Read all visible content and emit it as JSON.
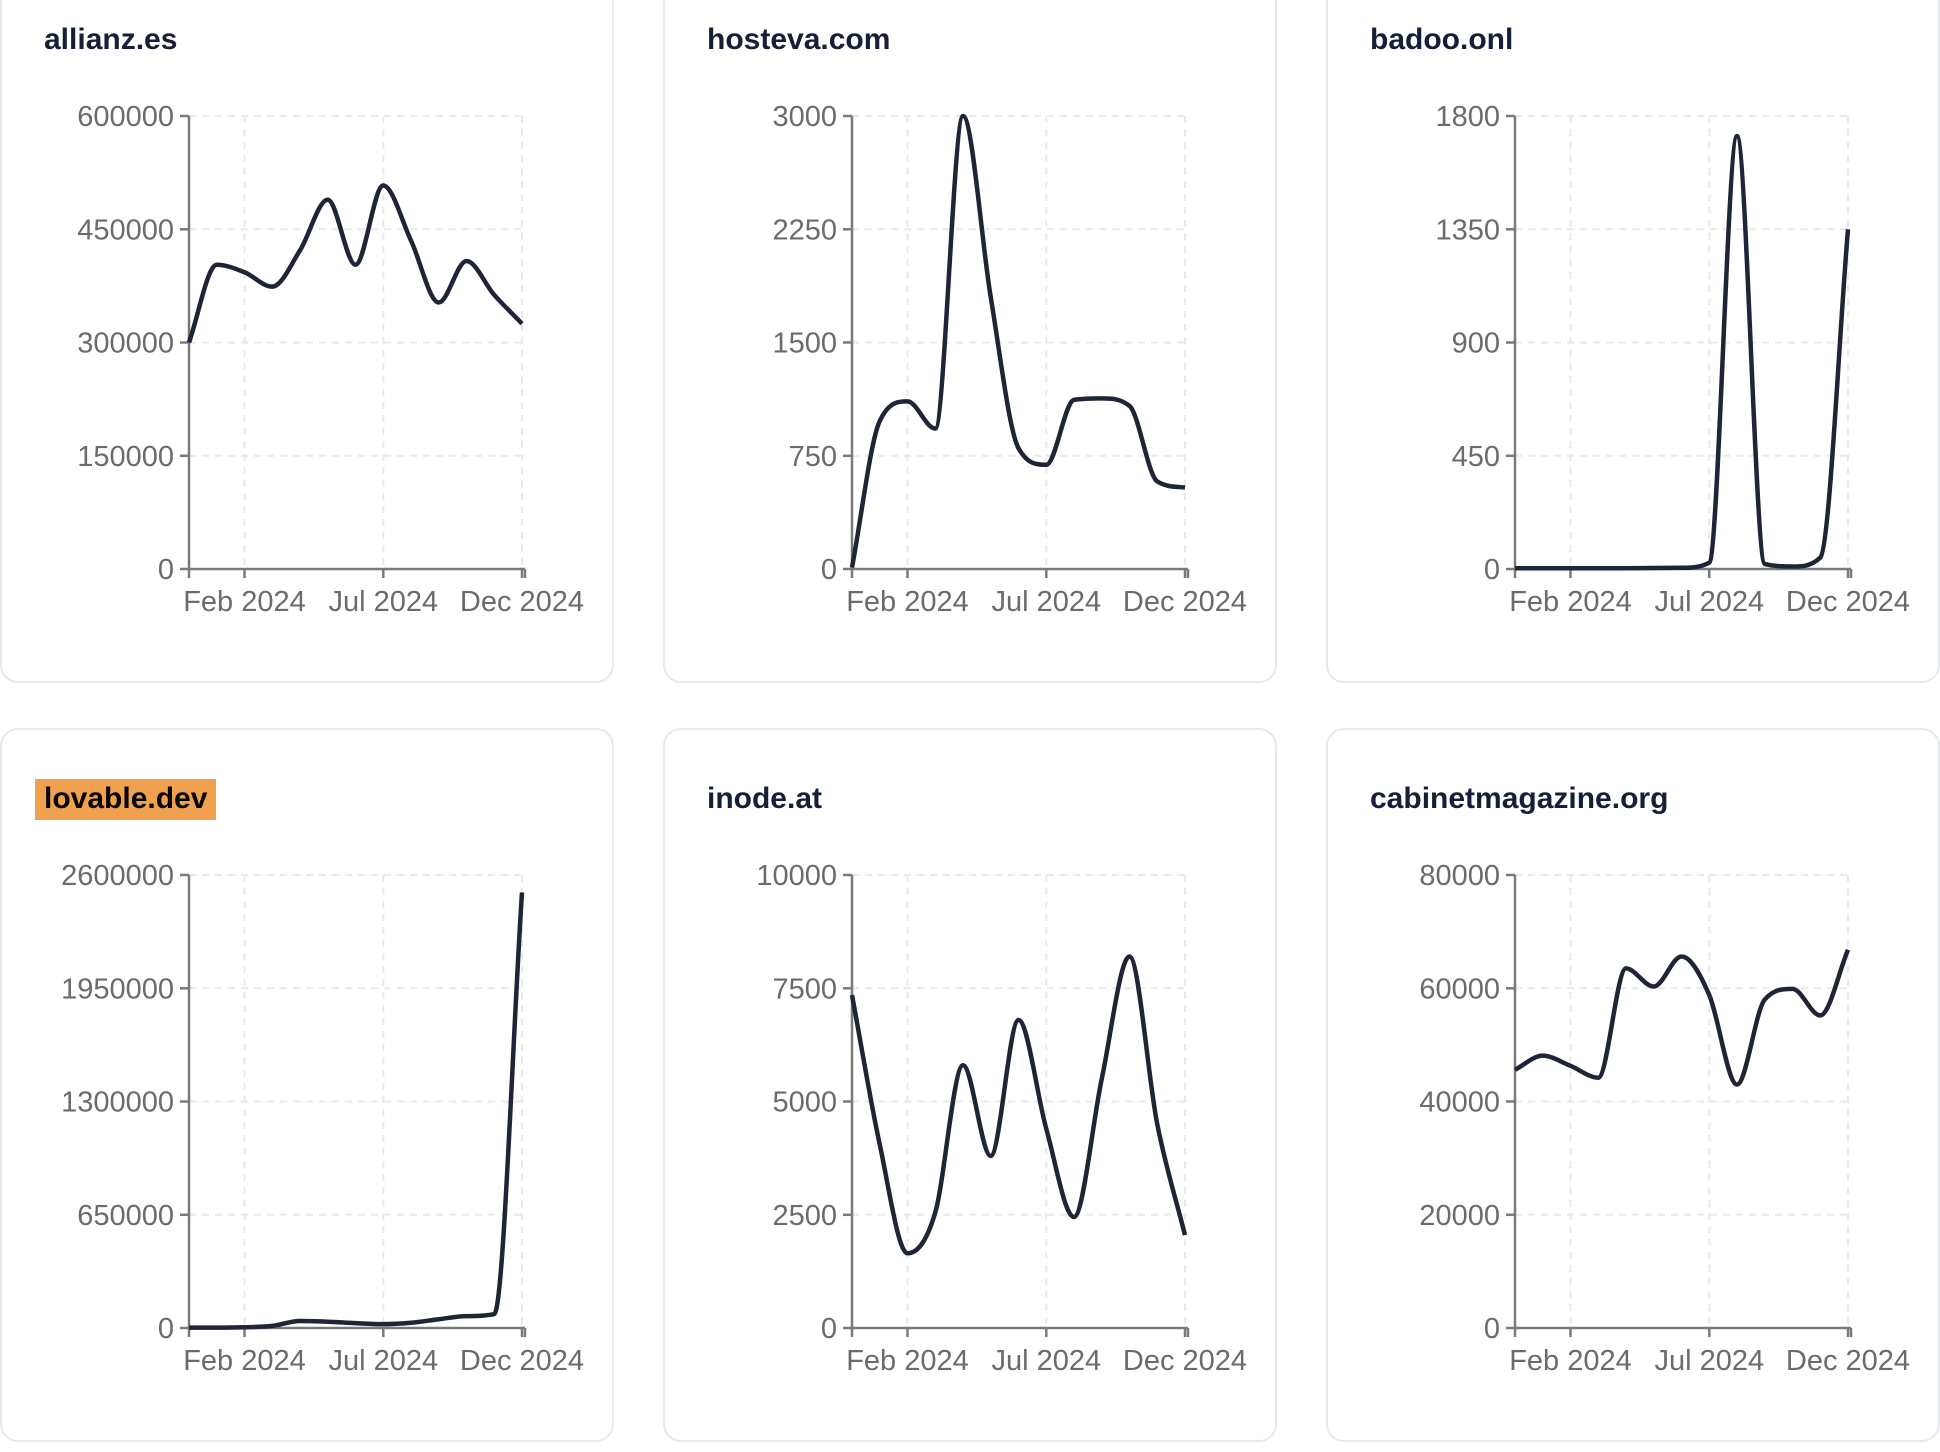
{
  "colors": {
    "line": "#1e2537",
    "title_text": "#161f38",
    "tick_label": "#6b6b6b",
    "axis": "#7a7a7a",
    "grid": "#e9e9e9",
    "card_border": "#e4e9f1",
    "card_bg": "#ffffff",
    "page_bg": "#ffffff",
    "highlight_bg": "#f0a14f",
    "highlight_text": "#050505"
  },
  "chart_data": [
    {
      "type": "line",
      "title": "allianz.es",
      "highlighted": false,
      "x": [
        "2023-12",
        "2024-01",
        "2024-02",
        "2024-03",
        "2024-04",
        "2024-05",
        "2024-06",
        "2024-07",
        "2024-08",
        "2024-09",
        "2024-10",
        "2024-11",
        "2024-12"
      ],
      "values": [
        300000,
        403000,
        393000,
        374000,
        422000,
        489000,
        403000,
        508000,
        435000,
        353000,
        408000,
        363000,
        325000
      ],
      "y_ticks": [
        0,
        150000,
        300000,
        450000,
        600000
      ],
      "ylim": [
        0,
        600000
      ],
      "x_tick_labels": [
        "Feb 2024",
        "Jul 2024",
        "Dec 2024"
      ],
      "x_tick_month_indices": [
        2,
        7,
        12
      ],
      "grid": true,
      "legend": false
    },
    {
      "type": "line",
      "title": "hosteva.com",
      "highlighted": false,
      "x": [
        "2023-12",
        "2024-01",
        "2024-02",
        "2024-03",
        "2024-04",
        "2024-05",
        "2024-06",
        "2024-07",
        "2024-08",
        "2024-09",
        "2024-10",
        "2024-11",
        "2024-12"
      ],
      "values": [
        10,
        980,
        1110,
        930,
        3000,
        1800,
        800,
        690,
        1120,
        1130,
        1080,
        580,
        540
      ],
      "y_ticks": [
        0,
        750,
        1500,
        2250,
        3000
      ],
      "ylim": [
        0,
        3000
      ],
      "x_tick_labels": [
        "Feb 2024",
        "Jul 2024",
        "Dec 2024"
      ],
      "x_tick_month_indices": [
        2,
        7,
        12
      ],
      "grid": true,
      "legend": false
    },
    {
      "type": "line",
      "title": "badoo.onl",
      "highlighted": false,
      "x": [
        "2023-12",
        "2024-01",
        "2024-02",
        "2024-03",
        "2024-04",
        "2024-05",
        "2024-06",
        "2024-07",
        "2024-08",
        "2024-09",
        "2024-10",
        "2024-11",
        "2024-12"
      ],
      "values": [
        3,
        3,
        3,
        3,
        3,
        4,
        5,
        25,
        1720,
        20,
        10,
        45,
        1350
      ],
      "y_ticks": [
        0,
        450,
        900,
        1350,
        1800
      ],
      "ylim": [
        0,
        1800
      ],
      "x_tick_labels": [
        "Feb 2024",
        "Jul 2024",
        "Dec 2024"
      ],
      "x_tick_month_indices": [
        2,
        7,
        12
      ],
      "grid": true,
      "legend": false
    },
    {
      "type": "line",
      "title": "lovable.dev",
      "highlighted": true,
      "x": [
        "2023-12",
        "2024-01",
        "2024-02",
        "2024-03",
        "2024-04",
        "2024-05",
        "2024-06",
        "2024-07",
        "2024-08",
        "2024-09",
        "2024-10",
        "2024-11",
        "2024-12"
      ],
      "values": [
        2000,
        2000,
        4000,
        12000,
        40000,
        36000,
        28000,
        22000,
        30000,
        50000,
        68000,
        80000,
        2500000
      ],
      "y_ticks": [
        0,
        650000,
        1300000,
        1950000,
        2600000
      ],
      "ylim": [
        0,
        2600000
      ],
      "x_tick_labels": [
        "Feb 2024",
        "Jul 2024",
        "Dec 2024"
      ],
      "x_tick_month_indices": [
        2,
        7,
        12
      ],
      "grid": true,
      "legend": false
    },
    {
      "type": "line",
      "title": "inode.at",
      "highlighted": false,
      "x": [
        "2023-12",
        "2024-01",
        "2024-02",
        "2024-03",
        "2024-04",
        "2024-05",
        "2024-06",
        "2024-07",
        "2024-08",
        "2024-09",
        "2024-10",
        "2024-11",
        "2024-12"
      ],
      "values": [
        7350,
        4050,
        1650,
        2550,
        5800,
        3800,
        6800,
        4400,
        2450,
        5500,
        8200,
        4500,
        2050
      ],
      "y_ticks": [
        0,
        2500,
        5000,
        7500,
        10000
      ],
      "ylim": [
        0,
        10000
      ],
      "x_tick_labels": [
        "Feb 2024",
        "Jul 2024",
        "Dec 2024"
      ],
      "x_tick_month_indices": [
        2,
        7,
        12
      ],
      "grid": true,
      "legend": false
    },
    {
      "type": "line",
      "title": "cabinetmagazine.org",
      "highlighted": false,
      "x": [
        "2023-12",
        "2024-01",
        "2024-02",
        "2024-03",
        "2024-04",
        "2024-05",
        "2024-06",
        "2024-07",
        "2024-08",
        "2024-09",
        "2024-10",
        "2024-11",
        "2024-12"
      ],
      "values": [
        45600,
        48100,
        46300,
        44200,
        63500,
        60300,
        65600,
        58800,
        43000,
        58000,
        59900,
        55200,
        66800
      ],
      "y_ticks": [
        0,
        20000,
        40000,
        60000,
        80000
      ],
      "ylim": [
        0,
        80000
      ],
      "x_tick_labels": [
        "Feb 2024",
        "Jul 2024",
        "Dec 2024"
      ],
      "x_tick_month_indices": [
        2,
        7,
        12
      ],
      "grid": true,
      "legend": false
    }
  ]
}
